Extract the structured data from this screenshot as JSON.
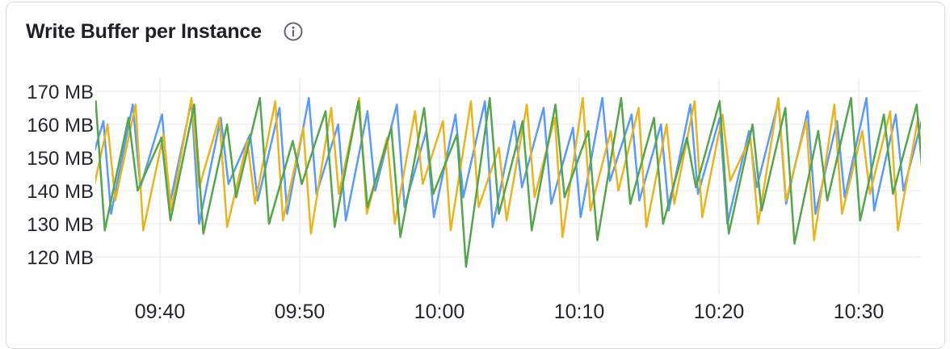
{
  "panel": {
    "title": "Write Buffer per Instance",
    "info_icon": "info-circle-icon",
    "background": "#FFFFFF",
    "border_color": "#D9DBDE"
  },
  "chart_data": {
    "type": "line",
    "title": "Write Buffer per Instance",
    "unit": "MB",
    "grid": true,
    "legend": false,
    "x_domain_minutes": [
      0,
      59.2
    ],
    "ylim": [
      120,
      170
    ],
    "y_axis": {
      "ticks": [
        {
          "v": 170,
          "label": "170 MB"
        },
        {
          "v": 160,
          "label": "160 MB"
        },
        {
          "v": 150,
          "label": "150 MB"
        },
        {
          "v": 140,
          "label": "140 MB"
        },
        {
          "v": 130,
          "label": "130 MB"
        },
        {
          "v": 120,
          "label": "120 MB"
        }
      ]
    },
    "x_axis": {
      "ticks": [
        {
          "t": 4.8,
          "label": "09:40"
        },
        {
          "t": 14.8,
          "label": "09:50"
        },
        {
          "t": 24.8,
          "label": "10:00"
        },
        {
          "t": 34.8,
          "label": "10:10"
        },
        {
          "t": 44.8,
          "label": "10:20"
        },
        {
          "t": 54.8,
          "label": "10:30"
        }
      ]
    },
    "gridline_color_h": "#E8E9EB",
    "gridline_color_v": "#E3E4E7",
    "series": [
      {
        "name": "blue",
        "color": "#5B9AF5",
        "points": [
          [
            -0.8,
            139
          ],
          [
            0.75,
            161
          ],
          [
            1.3,
            133
          ],
          [
            2.85,
            166
          ],
          [
            3.4,
            141
          ],
          [
            4.95,
            163
          ],
          [
            5.5,
            136
          ],
          [
            7.05,
            167
          ],
          [
            7.6,
            130
          ],
          [
            9.15,
            162
          ],
          [
            9.7,
            142
          ],
          [
            11.25,
            157
          ],
          [
            11.8,
            137
          ],
          [
            13.35,
            165
          ],
          [
            13.9,
            133
          ],
          [
            15.45,
            168
          ],
          [
            16,
            139
          ],
          [
            17.55,
            160
          ],
          [
            18.1,
            131
          ],
          [
            19.65,
            164
          ],
          [
            20.2,
            140
          ],
          [
            21.75,
            166
          ],
          [
            22.3,
            135
          ],
          [
            23.85,
            158
          ],
          [
            24.4,
            132
          ],
          [
            25.95,
            163
          ],
          [
            26.5,
            138
          ],
          [
            28.05,
            167
          ],
          [
            28.6,
            129
          ],
          [
            30.15,
            161
          ],
          [
            30.7,
            141
          ],
          [
            32.25,
            165
          ],
          [
            32.8,
            136
          ],
          [
            34.35,
            159
          ],
          [
            34.9,
            132
          ],
          [
            36.45,
            168
          ],
          [
            37,
            143
          ],
          [
            38.55,
            163
          ],
          [
            39.1,
            137
          ],
          [
            40.65,
            160
          ],
          [
            41.2,
            134
          ],
          [
            42.75,
            166
          ],
          [
            43.3,
            139
          ],
          [
            44.85,
            162
          ],
          [
            45.4,
            130
          ],
          [
            46.95,
            158
          ],
          [
            47.5,
            141
          ],
          [
            49.05,
            167
          ],
          [
            49.6,
            136
          ],
          [
            51.15,
            164
          ],
          [
            51.7,
            133
          ],
          [
            53.25,
            161
          ],
          [
            53.8,
            138
          ],
          [
            55.35,
            168
          ],
          [
            55.9,
            134
          ],
          [
            57.45,
            163
          ],
          [
            58,
            140
          ],
          [
            59.55,
            165
          ],
          [
            60.1,
            136
          ]
        ]
      },
      {
        "name": "yellow",
        "color": "#E8B420",
        "points": [
          [
            -0.4,
            132
          ],
          [
            1.05,
            160
          ],
          [
            1.6,
            137
          ],
          [
            3.05,
            166
          ],
          [
            3.6,
            128
          ],
          [
            5.05,
            157
          ],
          [
            5.6,
            134
          ],
          [
            7.05,
            168
          ],
          [
            7.6,
            141
          ],
          [
            9.05,
            162
          ],
          [
            9.6,
            129
          ],
          [
            11.05,
            155
          ],
          [
            11.6,
            136
          ],
          [
            13.05,
            167
          ],
          [
            13.6,
            131
          ],
          [
            15.05,
            159
          ],
          [
            15.6,
            127
          ],
          [
            17.05,
            165
          ],
          [
            17.6,
            139
          ],
          [
            19.05,
            168
          ],
          [
            19.6,
            133
          ],
          [
            21.05,
            156
          ],
          [
            21.6,
            130
          ],
          [
            23.05,
            164
          ],
          [
            23.6,
            142
          ],
          [
            25.05,
            161
          ],
          [
            25.6,
            128
          ],
          [
            27.05,
            167
          ],
          [
            27.6,
            135
          ],
          [
            29.05,
            153
          ],
          [
            29.6,
            131
          ],
          [
            31.05,
            166
          ],
          [
            31.6,
            138
          ],
          [
            33.05,
            162
          ],
          [
            33.6,
            126
          ],
          [
            35.05,
            168
          ],
          [
            35.6,
            134
          ],
          [
            37.05,
            158
          ],
          [
            37.6,
            140
          ],
          [
            39.05,
            165
          ],
          [
            39.6,
            129
          ],
          [
            41.05,
            160
          ],
          [
            41.6,
            136
          ],
          [
            43.05,
            167
          ],
          [
            43.6,
            132
          ],
          [
            45.05,
            163
          ],
          [
            45.6,
            143
          ],
          [
            47.05,
            156
          ],
          [
            47.6,
            130
          ],
          [
            49.05,
            168
          ],
          [
            49.6,
            137
          ],
          [
            51.05,
            161
          ],
          [
            51.6,
            125
          ],
          [
            53.05,
            166
          ],
          [
            53.6,
            133
          ],
          [
            55.05,
            158
          ],
          [
            55.6,
            139
          ],
          [
            57.05,
            164
          ],
          [
            57.6,
            128
          ],
          [
            59.05,
            162
          ],
          [
            59.6,
            135
          ]
        ]
      },
      {
        "name": "green",
        "color": "#55A54E",
        "points": [
          [
            -1.5,
            136
          ],
          [
            0.2,
            167
          ],
          [
            0.85,
            128
          ],
          [
            2.55,
            162
          ],
          [
            3.2,
            140
          ],
          [
            4.9,
            156
          ],
          [
            5.55,
            131
          ],
          [
            7.25,
            166
          ],
          [
            7.9,
            127
          ],
          [
            9.6,
            160
          ],
          [
            10.25,
            138
          ],
          [
            11.95,
            168
          ],
          [
            12.6,
            130
          ],
          [
            14.3,
            155
          ],
          [
            14.95,
            142
          ],
          [
            16.65,
            164
          ],
          [
            17.3,
            129
          ],
          [
            19,
            167
          ],
          [
            19.65,
            135
          ],
          [
            21.35,
            159
          ],
          [
            22,
            126
          ],
          [
            23.7,
            165
          ],
          [
            24.35,
            139
          ],
          [
            26.05,
            157
          ],
          [
            26.7,
            117
          ],
          [
            28.4,
            168
          ],
          [
            29.05,
            133
          ],
          [
            30.75,
            161
          ],
          [
            31.4,
            128
          ],
          [
            33.1,
            166
          ],
          [
            33.75,
            138
          ],
          [
            35.45,
            158
          ],
          [
            36.1,
            125
          ],
          [
            37.8,
            168
          ],
          [
            38.45,
            136
          ],
          [
            40.15,
            162
          ],
          [
            40.8,
            130
          ],
          [
            42.5,
            156
          ],
          [
            43.15,
            141
          ],
          [
            44.85,
            167
          ],
          [
            45.5,
            127
          ],
          [
            47.2,
            160
          ],
          [
            47.85,
            134
          ],
          [
            49.55,
            165
          ],
          [
            50.2,
            124
          ],
          [
            51.9,
            158
          ],
          [
            52.55,
            137
          ],
          [
            54.25,
            168
          ],
          [
            54.9,
            131
          ],
          [
            56.6,
            163
          ],
          [
            57.25,
            139
          ],
          [
            58.95,
            166
          ],
          [
            59.6,
            133
          ]
        ]
      }
    ]
  }
}
